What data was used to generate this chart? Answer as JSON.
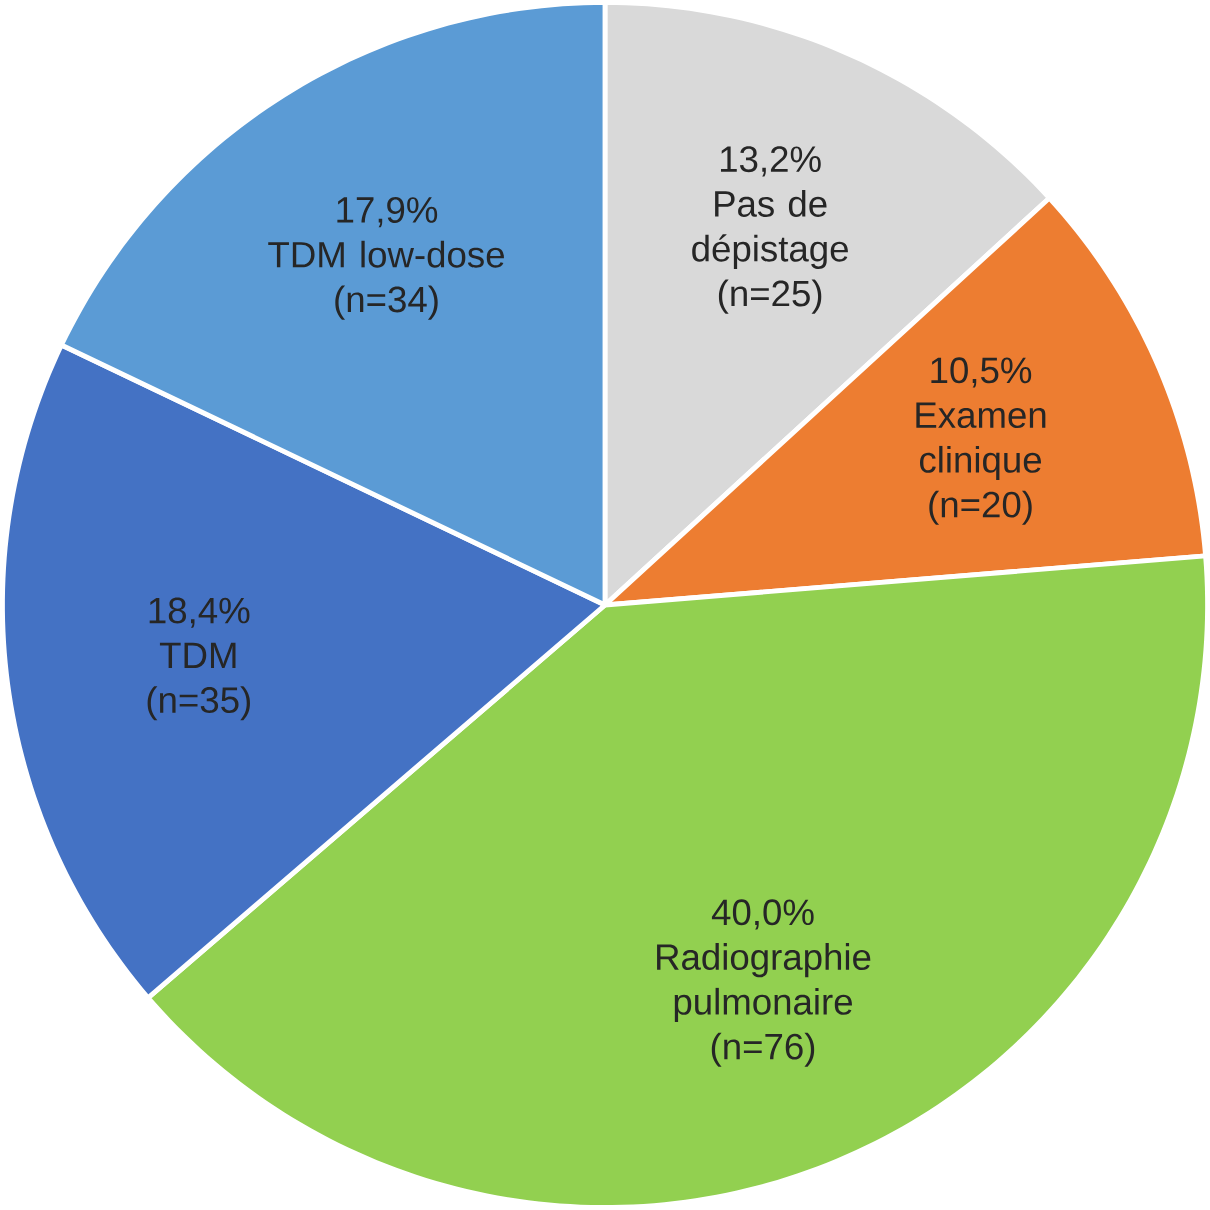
{
  "chart_data": {
    "type": "pie",
    "categories": [
      "Pas de dépistage",
      "Examen clinique",
      "Radiographie pulmonaire",
      "TDM",
      "TDM low-dose"
    ],
    "values": [
      13.2,
      10.5,
      40.0,
      18.4,
      17.9
    ],
    "colors": [
      "#d9d9d9",
      "#ed7d31",
      "#92d050",
      "#4472c4",
      "#5b9bd5"
    ],
    "value_labels": [
      "13,2%",
      "10,5%",
      "40,0%",
      "18,4%",
      "17,9%"
    ],
    "annotations": [
      "(n=25)",
      "(n=20)",
      "(n=76)",
      "(n=35)",
      "(n=34)"
    ]
  }
}
